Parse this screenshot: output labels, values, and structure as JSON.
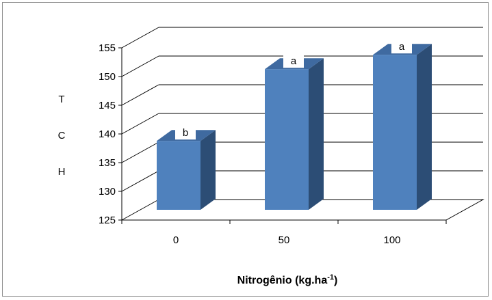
{
  "chart_data": {
    "type": "bar",
    "categories": [
      "0",
      "50",
      "100"
    ],
    "values": [
      137,
      149.5,
      152
    ],
    "data_labels": [
      "b",
      "a",
      "a"
    ],
    "ylabel_letters": [
      "T",
      "C",
      "H"
    ],
    "xlabel_main": "Nitrogênio (kg.ha",
    "xlabel_sup": "-1",
    "xlabel_close": ")",
    "ylim": [
      125,
      155
    ],
    "yticks": [
      "125",
      "130",
      "135",
      "140",
      "145",
      "150",
      "155"
    ],
    "grid": true,
    "three_d": true,
    "colors": {
      "front": "#4f81bd",
      "side": "#2c4d75",
      "top": "#3f6aa0"
    }
  }
}
